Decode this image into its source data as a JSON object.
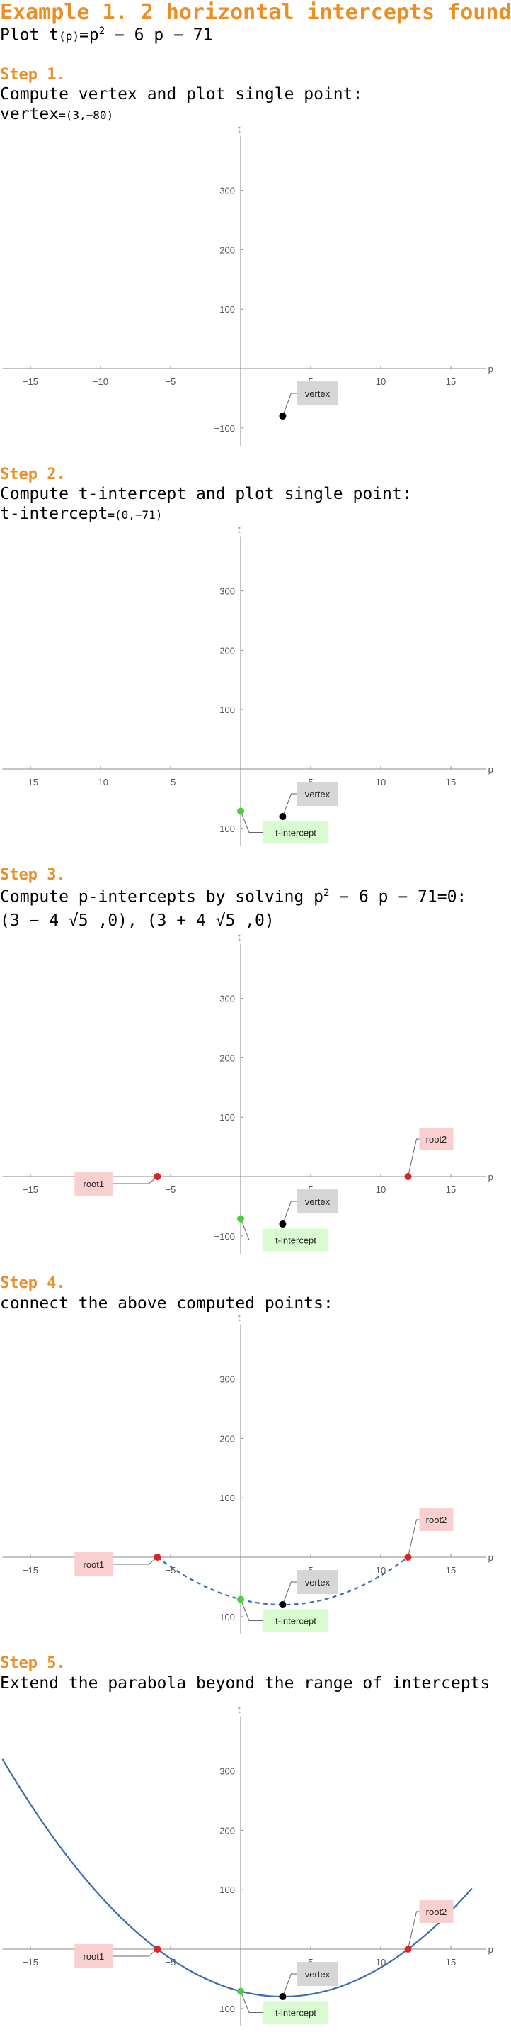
{
  "header": {
    "title": "Example 1. 2 horizontal intercepts found",
    "function_prefix": "Plot t",
    "function_arg": "(p)",
    "function_eq": "=p",
    "function_exp": "2",
    "function_rest": " − 6 p − 71"
  },
  "steps": [
    {
      "label": "Step 1.",
      "text1": "Compute vertex and plot single point:",
      "text2_a": "vertex",
      "text2_b": "=(3,−80)"
    },
    {
      "label": "Step 2.",
      "text1": "Compute t-intercept and plot single point:",
      "text2_a": "t-intercept",
      "text2_b": "=(0,−71)"
    },
    {
      "label": "Step 3.",
      "text1_a": "Compute p-intercepts by solving p",
      "text1_exp": "2",
      "text1_b": " − 6 p − 71=0:",
      "text2": "(3 − 4 √5 ,0),   (3 + 4 √5 ,0)"
    },
    {
      "label": "Step 4.",
      "text1": "connect the above computed points:"
    },
    {
      "label": "Step 5.",
      "text1": "Extend the parabola beyond the range of intercepts"
    }
  ],
  "labels": {
    "vertex": "vertex",
    "tint": "t-intercept",
    "root1": "root1",
    "root2": "root2"
  },
  "colors": {
    "orange": "#ee8e22",
    "curve": "#3a6dae",
    "vertex_point": "#000000",
    "tint_point": "#4bd03c",
    "root_point": "#d92525",
    "vertex_box": "#d6d6d6",
    "tint_box": "#d8fbd0",
    "root_box": "#f9cfcf",
    "axis": "#888888"
  },
  "chart_data": [
    {
      "type": "scatter",
      "step": 1,
      "function": "t(p)=p^2-6p-71",
      "xlabel": "p",
      "ylabel": "t",
      "xlim": [
        -17,
        17
      ],
      "ylim": [
        -130,
        380
      ],
      "x_ticks": [
        -15,
        -10,
        -5,
        5,
        10,
        15
      ],
      "y_ticks": [
        -100,
        100,
        200,
        300
      ],
      "points": [
        {
          "name": "vertex",
          "x": 3,
          "y": -80
        }
      ],
      "curve": "none"
    },
    {
      "type": "scatter",
      "step": 2,
      "function": "t(p)=p^2-6p-71",
      "xlabel": "p",
      "ylabel": "t",
      "xlim": [
        -17,
        17
      ],
      "ylim": [
        -130,
        380
      ],
      "x_ticks": [
        -15,
        -10,
        -5,
        5,
        10,
        15
      ],
      "y_ticks": [
        -100,
        100,
        200,
        300
      ],
      "points": [
        {
          "name": "vertex",
          "x": 3,
          "y": -80
        },
        {
          "name": "t-intercept",
          "x": 0,
          "y": -71
        }
      ],
      "curve": "none"
    },
    {
      "type": "scatter",
      "step": 3,
      "function": "t(p)=p^2-6p-71",
      "xlabel": "p",
      "ylabel": "t",
      "xlim": [
        -17,
        17
      ],
      "ylim": [
        -130,
        380
      ],
      "x_ticks": [
        -15,
        -10,
        -5,
        5,
        10,
        15
      ],
      "y_ticks": [
        -100,
        100,
        200,
        300
      ],
      "points": [
        {
          "name": "vertex",
          "x": 3,
          "y": -80
        },
        {
          "name": "t-intercept",
          "x": 0,
          "y": -71
        },
        {
          "name": "root1",
          "x": -5.944,
          "y": 0
        },
        {
          "name": "root2",
          "x": 11.944,
          "y": 0
        }
      ],
      "curve": "none"
    },
    {
      "type": "line",
      "step": 4,
      "function": "t(p)=p^2-6p-71",
      "xlabel": "p",
      "ylabel": "t",
      "xlim": [
        -17,
        17
      ],
      "ylim": [
        -130,
        380
      ],
      "x_ticks": [
        -15,
        -10,
        -5,
        5,
        10,
        15
      ],
      "y_ticks": [
        -100,
        100,
        200,
        300
      ],
      "points": [
        {
          "name": "vertex",
          "x": 3,
          "y": -80
        },
        {
          "name": "t-intercept",
          "x": 0,
          "y": -71
        },
        {
          "name": "root1",
          "x": -5.944,
          "y": 0
        },
        {
          "name": "root2",
          "x": 11.944,
          "y": 0
        }
      ],
      "curve": "dashed",
      "curve_range": [
        -5.944,
        11.944
      ]
    },
    {
      "type": "line",
      "step": 5,
      "function": "t(p)=p^2-6p-71",
      "xlabel": "p",
      "ylabel": "t",
      "xlim": [
        -17,
        17
      ],
      "ylim": [
        -130,
        380
      ],
      "x_ticks": [
        -15,
        -10,
        -5,
        5,
        10,
        15
      ],
      "y_ticks": [
        -100,
        100,
        200,
        300
      ],
      "points": [
        {
          "name": "vertex",
          "x": 3,
          "y": -80
        },
        {
          "name": "t-intercept",
          "x": 0,
          "y": -71
        },
        {
          "name": "root1",
          "x": -5.944,
          "y": 0
        },
        {
          "name": "root2",
          "x": 11.944,
          "y": 0
        }
      ],
      "curve": "solid",
      "curve_range": [
        -17,
        16.5
      ]
    }
  ]
}
